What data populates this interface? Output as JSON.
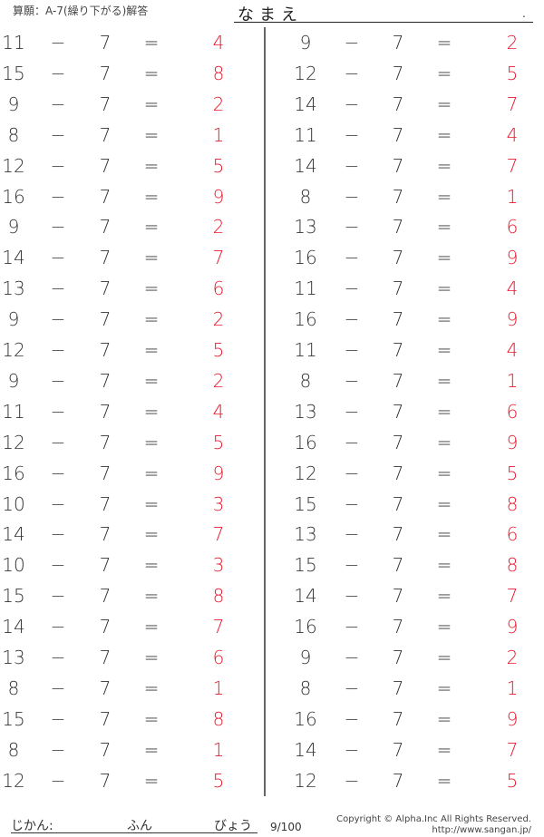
{
  "header": {
    "title": "算願：A-7(繰り下がる)解答",
    "name_label": "なまえ",
    "name_dot": "."
  },
  "operator": "−",
  "equals": "=",
  "left": [
    [
      11,
      7,
      4
    ],
    [
      15,
      7,
      8
    ],
    [
      9,
      7,
      2
    ],
    [
      8,
      7,
      1
    ],
    [
      12,
      7,
      5
    ],
    [
      16,
      7,
      9
    ],
    [
      9,
      7,
      2
    ],
    [
      14,
      7,
      7
    ],
    [
      13,
      7,
      6
    ],
    [
      9,
      7,
      2
    ],
    [
      12,
      7,
      5
    ],
    [
      9,
      7,
      2
    ],
    [
      11,
      7,
      4
    ],
    [
      12,
      7,
      5
    ],
    [
      16,
      7,
      9
    ],
    [
      10,
      7,
      3
    ],
    [
      14,
      7,
      7
    ],
    [
      10,
      7,
      3
    ],
    [
      15,
      7,
      8
    ],
    [
      14,
      7,
      7
    ],
    [
      13,
      7,
      6
    ],
    [
      8,
      7,
      1
    ],
    [
      15,
      7,
      8
    ],
    [
      8,
      7,
      1
    ],
    [
      12,
      7,
      5
    ]
  ],
  "right": [
    [
      9,
      7,
      2
    ],
    [
      12,
      7,
      5
    ],
    [
      14,
      7,
      7
    ],
    [
      11,
      7,
      4
    ],
    [
      14,
      7,
      7
    ],
    [
      8,
      7,
      1
    ],
    [
      13,
      7,
      6
    ],
    [
      16,
      7,
      9
    ],
    [
      11,
      7,
      4
    ],
    [
      16,
      7,
      9
    ],
    [
      11,
      7,
      4
    ],
    [
      8,
      7,
      1
    ],
    [
      13,
      7,
      6
    ],
    [
      16,
      7,
      9
    ],
    [
      12,
      7,
      5
    ],
    [
      15,
      7,
      8
    ],
    [
      13,
      7,
      6
    ],
    [
      15,
      7,
      8
    ],
    [
      14,
      7,
      7
    ],
    [
      16,
      7,
      9
    ],
    [
      9,
      7,
      2
    ],
    [
      8,
      7,
      1
    ],
    [
      16,
      7,
      9
    ],
    [
      14,
      7,
      7
    ],
    [
      12,
      7,
      5
    ]
  ],
  "answer_color": "#e8192c",
  "footer": {
    "time_label": "じかん:",
    "minutes": "ふん",
    "seconds": "びょう",
    "score": "9/100",
    "copyright": "Copyright © Alpha.Inc All Rights Reserved.",
    "url": "http://www.sangan.jp/"
  }
}
